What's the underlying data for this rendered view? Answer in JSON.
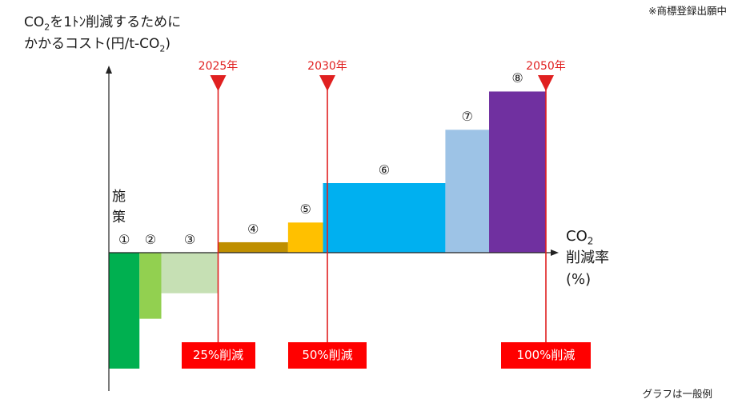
{
  "header": {
    "trademark_note": "※商標登録出願中",
    "ylabel_line1_prefix": "CO",
    "ylabel_line1_sub": "2",
    "ylabel_line1_suffix": "を1ﾄﾝ削減するために",
    "ylabel_line2_prefix": "かかるコスト(円/t-CO",
    "ylabel_line2_sub": "2",
    "ylabel_line2_suffix": ")"
  },
  "labels": {
    "measures_line1": "施",
    "measures_line2": "策",
    "xaxis_line1_prefix": "CO",
    "xaxis_line1_sub": "2",
    "xaxis_line2": "削減率",
    "xaxis_line3": "(%)",
    "footnote": "グラフは一般例"
  },
  "milestones": [
    {
      "year": "2025年",
      "reduction": "25%削減",
      "x_percent": 25
    },
    {
      "year": "2030年",
      "reduction": "50%削減",
      "x_percent": 50
    },
    {
      "year": "2050年",
      "reduction": "100%削減",
      "x_percent": 100
    }
  ],
  "colors": {
    "milestone": "#e02020",
    "axis": "#222222"
  },
  "chart_data": {
    "type": "bar",
    "title": "",
    "description_note": "Marginal abatement cost curve; bar width = CO2 reduction share, bar height = cost per ton",
    "xlabel": "CO2削減率(%)",
    "ylabel": "CO2を1ﾄﾝ削減するためにかかるコスト(円/t-CO2)",
    "xlim": [
      0,
      100
    ],
    "grid": false,
    "series": [
      {
        "label": "①",
        "x_start": 0,
        "x_end": 7,
        "value": -100,
        "color": "#00b050"
      },
      {
        "label": "②",
        "x_start": 7,
        "x_end": 12,
        "value": -57,
        "color": "#92d050"
      },
      {
        "label": "③",
        "x_start": 12,
        "x_end": 25,
        "value": -35,
        "color": "#c6e0b4"
      },
      {
        "label": "④",
        "x_start": 25,
        "x_end": 41,
        "value": 9,
        "color": "#bf8f00"
      },
      {
        "label": "⑤",
        "x_start": 41,
        "x_end": 49,
        "value": 26,
        "color": "#ffc000"
      },
      {
        "label": "⑥",
        "x_start": 49,
        "x_end": 77,
        "value": 60,
        "color": "#00b0f0"
      },
      {
        "label": "⑦",
        "x_start": 77,
        "x_end": 87,
        "value": 106,
        "color": "#9dc3e6"
      },
      {
        "label": "⑧",
        "x_start": 87,
        "x_end": 100,
        "value": 139,
        "color": "#7030a0"
      }
    ]
  }
}
